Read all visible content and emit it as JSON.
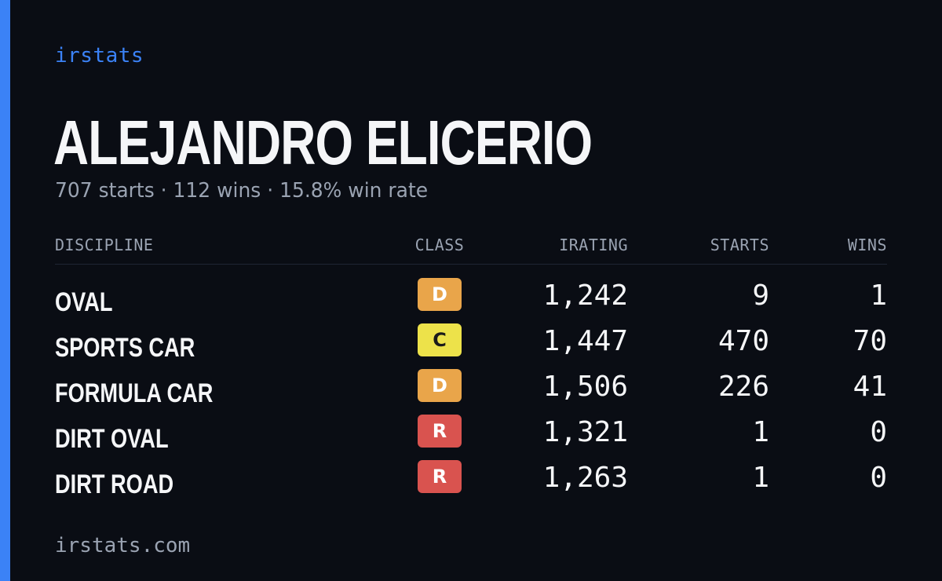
{
  "brand": "irstats",
  "driver_name": "ALEJANDRO ELICERIO",
  "summary": "707 starts · 112 wins · 15.8% win rate",
  "table": {
    "headers": {
      "discipline": "DISCIPLINE",
      "class": "CLASS",
      "irating": "IRATING",
      "starts": "STARTS",
      "wins": "WINS"
    },
    "rows": [
      {
        "discipline": "OVAL",
        "class": "D",
        "class_color": "#e9a54a",
        "irating": "1,242",
        "starts": "9",
        "wins": "1"
      },
      {
        "discipline": "SPORTS CAR",
        "class": "C",
        "class_color": "#ede24a",
        "irating": "1,447",
        "starts": "470",
        "wins": "70"
      },
      {
        "discipline": "FORMULA CAR",
        "class": "D",
        "class_color": "#e9a54a",
        "irating": "1,506",
        "starts": "226",
        "wins": "41"
      },
      {
        "discipline": "DIRT OVAL",
        "class": "R",
        "class_color": "#d9534f",
        "irating": "1,321",
        "starts": "1",
        "wins": "0"
      },
      {
        "discipline": "DIRT ROAD",
        "class": "R",
        "class_color": "#d9534f",
        "irating": "1,263",
        "starts": "1",
        "wins": "0"
      }
    ]
  },
  "footer": "irstats.com",
  "colors": {
    "accent": "#3b82f6",
    "background": "#0a0d14",
    "muted_text": "#9aa3b2"
  }
}
